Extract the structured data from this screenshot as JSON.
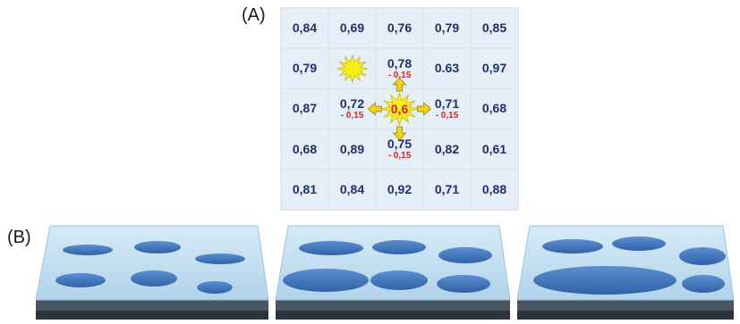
{
  "labels": {
    "a": "(A)",
    "b": "(B)"
  },
  "grid": {
    "rows": [
      [
        {
          "v": "0,84"
        },
        {
          "v": "0,69"
        },
        {
          "v": "0,76"
        },
        {
          "v": "0,79"
        },
        {
          "v": "0,85"
        }
      ],
      [
        {
          "v": "0,79"
        },
        {
          "v": "",
          "burst": true
        },
        {
          "v": "0,78",
          "d": "- 0,15"
        },
        {
          "v": "0.63"
        },
        {
          "v": "0,97"
        }
      ],
      [
        {
          "v": "0,87"
        },
        {
          "v": "0,72",
          "d": "- 0,15"
        },
        {
          "v": "0,6",
          "center": true
        },
        {
          "v": "0,71",
          "d": "- 0,15"
        },
        {
          "v": "0,68"
        }
      ],
      [
        {
          "v": "0,68"
        },
        {
          "v": "0,89"
        },
        {
          "v": "0,75",
          "d": "- 0,15"
        },
        {
          "v": "0,82"
        },
        {
          "v": "0,61"
        }
      ],
      [
        {
          "v": "0,81"
        },
        {
          "v": "0,84"
        },
        {
          "v": "0,92"
        },
        {
          "v": "0,71"
        },
        {
          "v": "0,88"
        }
      ]
    ]
  },
  "colors": {
    "tray_top": "#c6e1f2",
    "tray_front": "#3f4a57",
    "drop": "#3f76bd",
    "burst": "#f6ee1c",
    "arrow": "#f1d215"
  }
}
